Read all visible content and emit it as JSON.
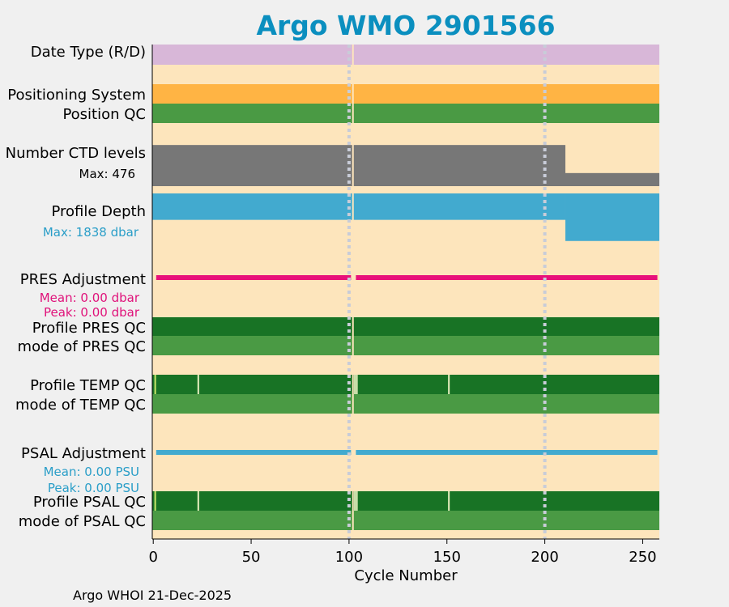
{
  "title": "Argo WMO 2901566",
  "credit": "Argo WHOI 21-Dec-2025",
  "colors": {
    "background": "#fde5bc",
    "date_type": "#d8b7d8",
    "positioning": "#ffb444",
    "qc_good": "#4a9a44",
    "qc_dark": "#187325",
    "ctd": "#777777",
    "depth": "#42aacf",
    "pres_adj": "#e8117a",
    "psal_adj": "#42aacf",
    "title": "#0b8fbf"
  },
  "chart_data": {
    "type": "bar",
    "title": "Argo WMO 2901566",
    "xlabel": "Cycle Number",
    "xlim": [
      -0.5,
      258.5
    ],
    "xticks": [
      0,
      50,
      100,
      150,
      200,
      250
    ],
    "reference_lines": [
      100,
      200
    ],
    "highlight_cycle": 102,
    "rows": [
      {
        "key": "date_type",
        "label": "Date Type (R/D)"
      },
      {
        "key": "positioning",
        "label": "Positioning System"
      },
      {
        "key": "position_qc",
        "label": "Position QC"
      },
      {
        "key": "ctd_levels",
        "label": "Number CTD levels",
        "annotation": "Max: 476",
        "max": 476,
        "segments": [
          {
            "from": 0,
            "to": 210,
            "value": 440
          },
          {
            "from": 211,
            "to": 258,
            "value": 140
          }
        ]
      },
      {
        "key": "profile_depth",
        "label": "Profile Depth",
        "annotation": "Max: 1838 dbar",
        "max": 1838,
        "segments": [
          {
            "from": 0,
            "to": 210,
            "value": 1000
          },
          {
            "from": 211,
            "to": 258,
            "value": 1800
          }
        ]
      },
      {
        "key": "pres_adjustment",
        "label": "PRES Adjustment",
        "annotations": [
          "Mean: 0.00 dbar",
          "Peak: 0.00 dbar"
        ],
        "mean": 0.0,
        "peak": 0.0
      },
      {
        "key": "profile_pres_qc",
        "label": "Profile PRES QC"
      },
      {
        "key": "mode_pres_qc",
        "label": "mode of PRES QC"
      },
      {
        "key": "profile_temp_qc",
        "label": "Profile TEMP QC",
        "light_cycles": [
          1,
          23,
          103,
          104,
          151
        ]
      },
      {
        "key": "mode_temp_qc",
        "label": "mode of TEMP QC"
      },
      {
        "key": "psal_adjustment",
        "label": "PSAL Adjustment",
        "annotations": [
          "Mean: 0.00 PSU",
          "Peak: 0.00 PSU"
        ],
        "mean": 0.0,
        "peak": 0.0
      },
      {
        "key": "profile_psal_qc",
        "label": "Profile PSAL QC",
        "light_cycles": [
          1,
          23,
          103,
          104,
          151
        ]
      },
      {
        "key": "mode_psal_qc",
        "label": "mode of PSAL QC"
      }
    ]
  }
}
